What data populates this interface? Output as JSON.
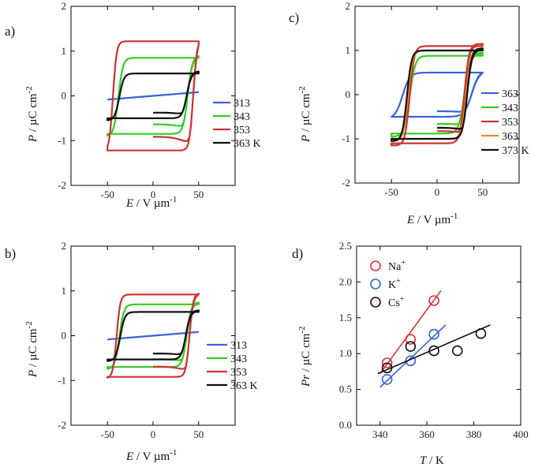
{
  "chart_data": [
    {
      "id": "a",
      "panel_label": "a)",
      "type": "line",
      "xlabel_sym": "E",
      "xlabel_unit": " / V µm",
      "xlabel_exp": "-1",
      "ylabel_sym": "P",
      "ylabel_unit": " / µC cm",
      "ylabel_exp": "-2",
      "xlim": [
        -90,
        90
      ],
      "ylim": [
        -2,
        2
      ],
      "xticks": [
        -50,
        0,
        50
      ],
      "yticks": [
        -2,
        -1,
        0,
        1,
        2
      ],
      "legend_position": "right",
      "series": [
        {
          "name": "313",
          "color": "#3b63d6",
          "kind": "line",
          "Pmax": 0.12,
          "Pr": 0.0,
          "Ec": 0,
          "Emax": 50,
          "w": 10,
          "init": false
        },
        {
          "name": "343",
          "color": "#33cc22",
          "kind": "loop",
          "Pmax": 0.9,
          "Pr": 0.85,
          "Ec": 38,
          "Emax": 50,
          "w": 5,
          "init": true
        },
        {
          "name": "353",
          "color": "#cc3333",
          "kind": "loop",
          "Pmax": 1.25,
          "Pr": 1.22,
          "Ec": 44,
          "Emax": 50,
          "w": 4,
          "init": true
        },
        {
          "name": "363 K",
          "color": "#111111",
          "kind": "loop",
          "Pmax": 0.55,
          "Pr": 0.5,
          "Ec": 37,
          "Emax": 50,
          "w": 5,
          "init": true
        }
      ]
    },
    {
      "id": "b",
      "panel_label": "b)",
      "type": "line",
      "xlabel_sym": "E",
      "xlabel_unit": " / V µm",
      "xlabel_exp": "-1",
      "ylabel_sym": "P",
      "ylabel_unit": " / µC cm",
      "ylabel_exp": "-2",
      "xlim": [
        -90,
        90
      ],
      "ylim": [
        -2,
        2
      ],
      "xticks": [
        -50,
        0,
        50
      ],
      "yticks": [
        -2,
        -1,
        0,
        1,
        2
      ],
      "legend_position": "right",
      "series": [
        {
          "name": "313",
          "color": "#3b63d6",
          "kind": "line",
          "Pmax": 0.12,
          "Pr": 0.0,
          "Ec": 0,
          "Emax": 50,
          "w": 10,
          "init": false
        },
        {
          "name": "343",
          "color": "#33cc22",
          "kind": "loop",
          "Pmax": 0.75,
          "Pr": 0.7,
          "Ec": 37,
          "Emax": 50,
          "w": 5,
          "init": true
        },
        {
          "name": "353",
          "color": "#cc3333",
          "kind": "loop",
          "Pmax": 0.95,
          "Pr": 0.92,
          "Ec": 40,
          "Emax": 50,
          "w": 4,
          "init": true
        },
        {
          "name": "363 K",
          "color": "#111111",
          "kind": "loop",
          "Pmax": 0.57,
          "Pr": 0.53,
          "Ec": 36,
          "Emax": 50,
          "w": 5,
          "init": true
        }
      ]
    },
    {
      "id": "c",
      "panel_label": "c)",
      "type": "line",
      "xlabel_sym": "E",
      "xlabel_unit": " / V µm",
      "xlabel_exp": "-1",
      "ylabel_sym": "P",
      "ylabel_unit": " / µC cm",
      "ylabel_exp": "-2",
      "xlim": [
        -90,
        90
      ],
      "ylim": [
        -2,
        2
      ],
      "xticks": [
        -50,
        0,
        50
      ],
      "yticks": [
        -2,
        -1,
        0,
        1,
        2
      ],
      "legend_position": "right",
      "series": [
        {
          "name": "363",
          "color": "#3b63d6",
          "kind": "loop",
          "Pmax": 0.55,
          "Pr": 0.5,
          "Ec": 38,
          "Emax": 50,
          "w": 8,
          "init": true
        },
        {
          "name": "343",
          "color": "#33cc22",
          "kind": "loop",
          "Pmax": 0.95,
          "Pr": 0.88,
          "Ec": 30,
          "Emax": 50,
          "w": 6,
          "init": true
        },
        {
          "name": "353",
          "color": "#cc3333",
          "kind": "loop",
          "Pmax": 1.15,
          "Pr": 1.1,
          "Ec": 30,
          "Emax": 50,
          "w": 5,
          "init": true
        },
        {
          "name": "363",
          "color": "#ee8822",
          "kind": "loop",
          "Pmax": 1.05,
          "Pr": 1.0,
          "Ec": 32,
          "Emax": 50,
          "w": 5,
          "init": true
        },
        {
          "name": "373 K",
          "color": "#111111",
          "kind": "loop",
          "Pmax": 1.05,
          "Pr": 1.0,
          "Ec": 33,
          "Emax": 50,
          "w": 5,
          "init": true
        }
      ]
    },
    {
      "id": "d",
      "panel_label": "d)",
      "type": "scatter",
      "xlabel_sym": "T",
      "xlabel_unit": " / K",
      "ylabel_sym": "Pr",
      "ylabel_unit": " / µC cm",
      "ylabel_exp": "-2",
      "xlim": [
        330,
        400
      ],
      "ylim": [
        0,
        2.5
      ],
      "xticks": [
        340,
        360,
        380,
        400
      ],
      "yticks": [
        0.0,
        0.5,
        1.0,
        1.5,
        2.0,
        2.5
      ],
      "ytick_labels": [
        "0.0",
        "0.5",
        "1.0",
        "1.5",
        "2.0",
        "2.5"
      ],
      "legend_position": "top-left",
      "series": [
        {
          "name": "Na",
          "sup": "+",
          "color": "#dd3333",
          "x": [
            343,
            353,
            363
          ],
          "y": [
            0.87,
            1.2,
            1.74
          ],
          "fit": [
            [
              340,
              0.72
            ],
            [
              366,
              1.88
            ]
          ]
        },
        {
          "name": "K",
          "sup": "+",
          "color": "#3b63d6",
          "x": [
            343,
            353,
            363
          ],
          "y": [
            0.64,
            0.9,
            1.27
          ],
          "fit": [
            [
              340,
              0.53
            ],
            [
              368,
              1.4
            ]
          ]
        },
        {
          "name": "Cs",
          "sup": "+",
          "color": "#111111",
          "x": [
            343,
            353,
            363,
            373,
            383
          ],
          "y": [
            0.8,
            1.1,
            1.04,
            1.04,
            1.28
          ],
          "fit": [
            [
              339,
              0.72
            ],
            [
              387,
              1.4
            ]
          ]
        }
      ]
    }
  ]
}
